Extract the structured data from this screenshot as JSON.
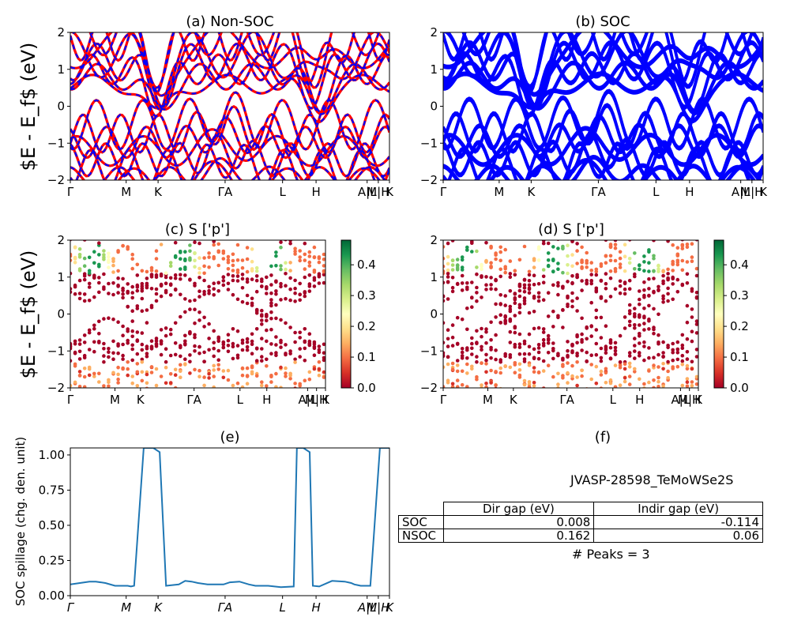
{
  "chart_data": [
    {
      "id": "a",
      "type": "line",
      "title": "(a) Non-SOC",
      "ylabel": "$E - E_f$ (eV)",
      "ylim": [
        -2,
        2
      ],
      "yticks": [
        "2",
        "1",
        "0",
        "−1",
        "−2"
      ],
      "xticks": [
        "Γ",
        "M",
        "K",
        "ΓA",
        "L",
        "H",
        "A|L",
        "M|H",
        "K"
      ],
      "series": [
        {
          "color": "#ff0000",
          "style": "solid"
        },
        {
          "color": "#0000ff",
          "style": "dashed"
        }
      ]
    },
    {
      "id": "b",
      "type": "line",
      "title": "(b) SOC",
      "ylim": [
        -2,
        2
      ],
      "yticks": [
        "2",
        "1",
        "0",
        "−1",
        "−2"
      ],
      "xticks": [
        "Γ",
        "M",
        "K",
        "ΓA",
        "L",
        "H",
        "A|L",
        "M|H",
        "K"
      ],
      "series": [
        {
          "color": "#0000ff",
          "style": "solid"
        }
      ]
    },
    {
      "id": "c",
      "type": "scatter",
      "title": "(c)  S ['p']",
      "ylabel": "$E - E_f$ (eV)",
      "ylim": [
        -2,
        2
      ],
      "yticks": [
        "2",
        "1",
        "0",
        "−1",
        "−2"
      ],
      "xticks": [
        "Γ",
        "M",
        "K",
        "ΓA",
        "L",
        "H",
        "A|L",
        "M|H",
        "K"
      ],
      "colorbar": {
        "colormap": "RdYlGn",
        "range": [
          0,
          0.48
        ],
        "ticks": [
          "0.4",
          "0.3",
          "0.2",
          "0.1",
          "0.0"
        ]
      }
    },
    {
      "id": "d",
      "type": "scatter",
      "title": "(d) S ['p']",
      "ylim": [
        -2,
        2
      ],
      "yticks": [
        "2",
        "1",
        "0",
        "−1",
        "−2"
      ],
      "xticks": [
        "Γ",
        "M",
        "K",
        "ΓA",
        "L",
        "H",
        "A|L",
        "M|H",
        "K"
      ],
      "colorbar": {
        "colormap": "RdYlGn",
        "range": [
          0,
          0.48
        ],
        "ticks": [
          "0.4",
          "0.3",
          "0.2",
          "0.1",
          "0.0"
        ]
      }
    },
    {
      "id": "e",
      "type": "line",
      "title": "(e)",
      "ylabel": "SOC spillage (chg. den. unit)",
      "ylim": [
        0,
        1.05
      ],
      "yticks": [
        "1.00",
        "0.75",
        "0.50",
        "0.25",
        "0.00"
      ],
      "xticks": [
        "Γ",
        "M",
        "K",
        "ΓA",
        "L",
        "H",
        "A|L",
        "M|H",
        "K"
      ],
      "color": "#1f77b4",
      "x": [
        0,
        3,
        6,
        8,
        11,
        14,
        17,
        18,
        19,
        20,
        23,
        26,
        28,
        30,
        32,
        34,
        36,
        38,
        40,
        43,
        46,
        48,
        50,
        53,
        56,
        58,
        62,
        66,
        70,
        71,
        73,
        75,
        76,
        78,
        82,
        86,
        88,
        89,
        90,
        91,
        94,
        97,
        100
      ],
      "y": [
        0.08,
        0.09,
        0.1,
        0.1,
        0.09,
        0.07,
        0.07,
        0.07,
        0.065,
        0.07,
        1.05,
        1.05,
        1.02,
        0.07,
        0.075,
        0.08,
        0.105,
        0.1,
        0.09,
        0.08,
        0.08,
        0.08,
        0.095,
        0.1,
        0.08,
        0.07,
        0.07,
        0.06,
        0.065,
        1.05,
        1.05,
        1.02,
        0.07,
        0.065,
        0.105,
        0.1,
        0.09,
        0.08,
        0.075,
        0.07,
        0.07,
        1.05,
        1.05
      ]
    }
  ],
  "panel_f": {
    "title": "(f)",
    "material": "JVASP-28598_TeMoWSe2S",
    "table": {
      "headers": [
        "Dir gap (eV)",
        "Indir gap (eV)"
      ],
      "rows": [
        {
          "label": "SOC",
          "dir": "0.008",
          "indir": "-0.114"
        },
        {
          "label": "NSOC",
          "dir": "0.162",
          "indir": "0.06"
        }
      ]
    },
    "peaks": "# Peaks = 3"
  }
}
